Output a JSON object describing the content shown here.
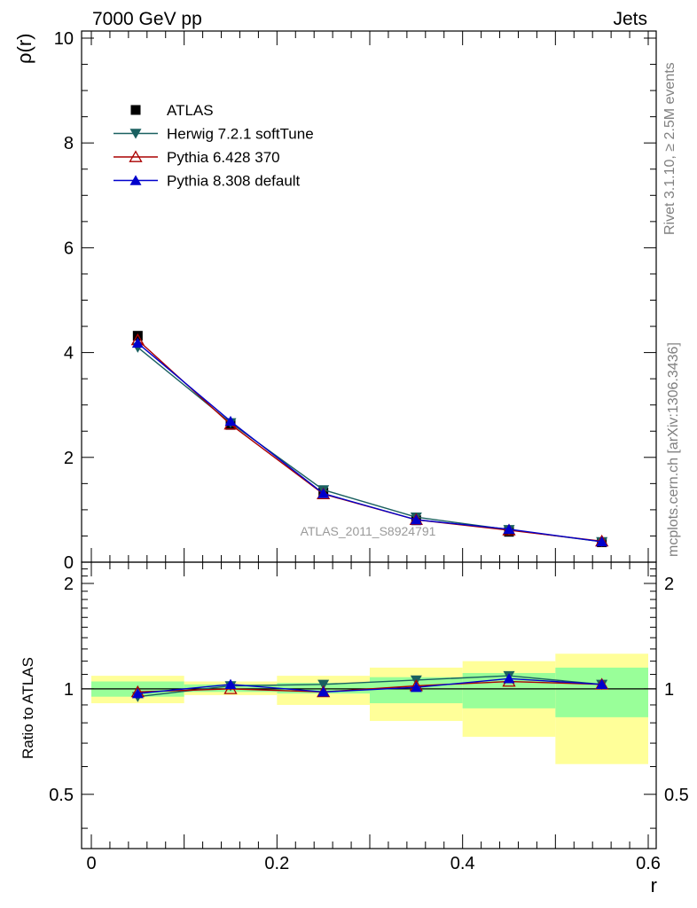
{
  "header": {
    "left_label": "7000 GeV pp",
    "right_label": "Jets"
  },
  "side_labels": {
    "rivet": "Rivet 3.1.10, ≥ 2.5M events",
    "mcplots": "mcplots.cern.ch [arXiv:1306.3436]"
  },
  "watermark": "ATLAS_2011_S8924791",
  "chart_data": [
    {
      "type": "line",
      "panel": "main",
      "xlabel": "r",
      "ylabel": "ρ(r)",
      "xlim": [
        0,
        0.6
      ],
      "ylim": [
        0,
        10
      ],
      "x": [
        0.05,
        0.15,
        0.25,
        0.35,
        0.45,
        0.55
      ],
      "xticks": [
        "0",
        "0.2",
        "0.4",
        "0.6"
      ],
      "yticks": [
        "0",
        "2",
        "4",
        "6",
        "8",
        "10"
      ],
      "legend_position": "top-left",
      "series": [
        {
          "name": "ATLAS",
          "color": "#000000",
          "marker": "square",
          "values": [
            4.32,
            2.62,
            1.33,
            0.8,
            0.58,
            0.38
          ]
        },
        {
          "name": "Herwig 7.2.1 softTune",
          "color": "#1a6060",
          "marker": "triangle-down",
          "values": [
            4.1,
            2.66,
            1.38,
            0.86,
            0.62,
            0.39
          ]
        },
        {
          "name": "Pythia 6.428 370",
          "color": "#aa0000",
          "marker": "triangle-up-open",
          "values": [
            4.24,
            2.63,
            1.3,
            0.81,
            0.61,
            0.4
          ]
        },
        {
          "name": "Pythia 8.308 default",
          "color": "#0000cc",
          "marker": "triangle-up",
          "values": [
            4.18,
            2.69,
            1.31,
            0.81,
            0.63,
            0.39
          ]
        }
      ]
    },
    {
      "type": "line",
      "panel": "ratio",
      "xlabel": "r",
      "ylabel": "Ratio to ATLAS",
      "xlim": [
        0,
        0.6
      ],
      "ylim": [
        0.35,
        2.3
      ],
      "scale": "log",
      "x": [
        0.05,
        0.15,
        0.25,
        0.35,
        0.45,
        0.55
      ],
      "yticks": [
        "0.5",
        "1",
        "2"
      ],
      "bands": {
        "x_edges": [
          0,
          0.1,
          0.2,
          0.3,
          0.4,
          0.5,
          0.6
        ],
        "stat_low": [
          0.95,
          0.98,
          0.97,
          0.91,
          0.88,
          0.83
        ],
        "stat_high": [
          1.05,
          1.03,
          1.04,
          1.08,
          1.11,
          1.15
        ],
        "total_low": [
          0.91,
          0.96,
          0.9,
          0.81,
          0.73,
          0.61
        ],
        "total_high": [
          1.09,
          1.05,
          1.09,
          1.15,
          1.2,
          1.26
        ],
        "stat_color": "#99ff99",
        "total_color": "#ffff99"
      },
      "series": [
        {
          "name": "Herwig 7.2.1 softTune",
          "color": "#1a6060",
          "marker": "triangle-down",
          "values": [
            0.95,
            1.02,
            1.03,
            1.06,
            1.09,
            1.03
          ]
        },
        {
          "name": "Pythia 6.428 370",
          "color": "#aa0000",
          "marker": "triangle-up-open",
          "values": [
            0.98,
            1.0,
            0.98,
            1.02,
            1.05,
            1.03
          ]
        },
        {
          "name": "Pythia 8.308 default",
          "color": "#0000cc",
          "marker": "triangle-up",
          "values": [
            0.97,
            1.03,
            0.98,
            1.01,
            1.07,
            1.03
          ]
        }
      ]
    }
  ]
}
